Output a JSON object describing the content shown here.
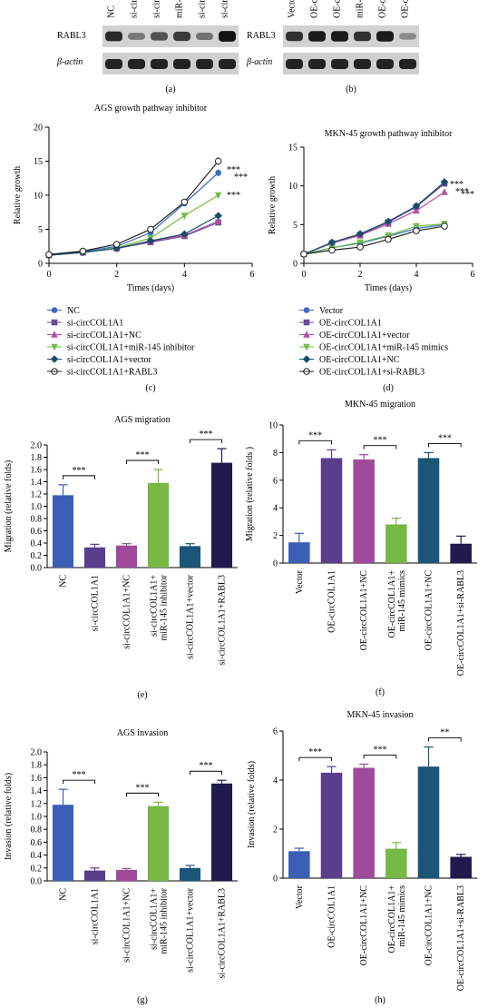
{
  "blots": {
    "a": {
      "lanes": [
        "NC",
        "si-cir",
        "si-cir",
        "miR-",
        "si-cir",
        "si-cir"
      ],
      "row1": "RABL3",
      "row2": "β-actin",
      "intensity": [
        0.8,
        0.3,
        0.55,
        0.7,
        0.35,
        0.95
      ],
      "panel": "(a)"
    },
    "b": {
      "lanes": [
        "Vector",
        "OE-c",
        "OE-c",
        "miR-",
        "OE-c",
        "OE-c"
      ],
      "row1": "RABL3",
      "row2": "β-actin",
      "intensity": [
        0.75,
        0.9,
        0.9,
        0.75,
        0.9,
        0.2
      ],
      "panel": "(b)"
    }
  },
  "chart_data": [
    {
      "id": "c",
      "type": "line",
      "panel": "(c)",
      "title": "AGS growth pathway inhibitor",
      "xlabel": "Times (days)",
      "ylabel": "Relative growth",
      "xlim": [
        0,
        6
      ],
      "ylim": [
        0,
        20
      ],
      "xticks": [
        0,
        2,
        4,
        6
      ],
      "yticks": [
        0,
        5,
        10,
        15,
        20
      ],
      "x": [
        0,
        1,
        2,
        3,
        4,
        5
      ],
      "series": [
        {
          "name": "NC",
          "values": [
            1.3,
            1.7,
            2.5,
            4.5,
            8.8,
            13.3
          ],
          "color": "#3a6bc4",
          "marker": "circle-filled"
        },
        {
          "name": "si-circCOL1A1",
          "values": [
            1.2,
            1.6,
            2.2,
            3.1,
            4.0,
            6.0
          ],
          "color": "#6a4c9c",
          "marker": "square"
        },
        {
          "name": "si-circCOL1A1+NC",
          "values": [
            1.2,
            1.6,
            2.2,
            3.2,
            4.1,
            6.2
          ],
          "color": "#b04fa8",
          "marker": "triangle-up"
        },
        {
          "name": "si-circCOL1A1+miR-145 inhibitor",
          "values": [
            1.2,
            1.6,
            2.3,
            3.7,
            7.0,
            10.0
          ],
          "color": "#6fbe44",
          "marker": "triangle-down"
        },
        {
          "name": "si-circCOL1A1+vector",
          "values": [
            1.2,
            1.6,
            2.2,
            3.3,
            4.3,
            7.0
          ],
          "color": "#1b4d6b",
          "marker": "diamond"
        },
        {
          "name": "si-circCOL1A1+RABL3",
          "values": [
            1.3,
            1.8,
            2.8,
            5.0,
            9.0,
            15.0
          ],
          "color": "#222222",
          "marker": "circle-open"
        }
      ],
      "annotations": [
        "***",
        "***",
        "***"
      ]
    },
    {
      "id": "d",
      "type": "line",
      "panel": "(d)",
      "title": "MKN-45 growth pathway inhibitor",
      "xlabel": "Times (days)",
      "ylabel": "Relative growth",
      "xlim": [
        0,
        6
      ],
      "ylim": [
        0,
        15
      ],
      "xticks": [
        0,
        2,
        4,
        6
      ],
      "yticks": [
        0,
        5,
        10,
        15
      ],
      "x": [
        0,
        1,
        2,
        3,
        4,
        5
      ],
      "series": [
        {
          "name": "Vector",
          "values": [
            1.2,
            2.0,
            2.6,
            3.5,
            4.5,
            5.0
          ],
          "color": "#3a6bc4",
          "marker": "circle-filled"
        },
        {
          "name": "OE-circCOL1A1",
          "values": [
            1.2,
            2.6,
            3.7,
            5.3,
            7.3,
            10.3
          ],
          "color": "#6a4c9c",
          "marker": "square"
        },
        {
          "name": "OE-circCOL1A1+vector",
          "values": [
            1.2,
            2.6,
            3.6,
            5.1,
            6.8,
            9.2
          ],
          "color": "#b04fa8",
          "marker": "triangle-up"
        },
        {
          "name": "OE-circCOL1A1+miR-145 mimics",
          "values": [
            1.2,
            2.0,
            2.7,
            3.6,
            4.8,
            5.1
          ],
          "color": "#6fbe44",
          "marker": "triangle-down"
        },
        {
          "name": "OE-circCOL1A1+NC",
          "values": [
            1.2,
            2.7,
            3.8,
            5.4,
            7.4,
            10.5
          ],
          "color": "#1b4d6b",
          "marker": "diamond"
        },
        {
          "name": "OE-circCOL1A1+si-RABL3",
          "values": [
            1.2,
            1.7,
            2.1,
            3.1,
            4.2,
            4.8
          ],
          "color": "#222222",
          "marker": "circle-open"
        }
      ],
      "annotations": [
        "***",
        "***",
        "***"
      ]
    },
    {
      "id": "e",
      "type": "bar",
      "panel": "(e)",
      "title": "AGS migration",
      "ylabel": "Migration (relative folds)",
      "ylim": [
        0,
        2.0
      ],
      "yticks": [
        "0.0",
        "0.2",
        "0.4",
        "0.6",
        "0.8",
        "1.0",
        "1.2",
        "1.4",
        "1.6",
        "1.8",
        "2.0"
      ],
      "categories": [
        "NC",
        "si-circCOL1A1",
        "si-circCOL1A1+NC",
        "si-circCOL1A1+ miR-145 inhibitor",
        "si-circCOL1A1+vector",
        "si-circCOL1A1+RABL3"
      ],
      "values": [
        1.18,
        0.33,
        0.36,
        1.38,
        0.35,
        1.71
      ],
      "errors": [
        0.17,
        0.05,
        0.03,
        0.22,
        0.04,
        0.23
      ],
      "colors": [
        "#3a5fb5",
        "#5a3e8c",
        "#a04a9c",
        "#76b843",
        "#1b5577",
        "#201a4f"
      ],
      "significance": [
        {
          "from": 0,
          "to": 1,
          "label": "***"
        },
        {
          "from": 2,
          "to": 3,
          "label": "***"
        },
        {
          "from": 4,
          "to": 5,
          "label": "***"
        }
      ]
    },
    {
      "id": "f",
      "type": "bar",
      "panel": "(f)",
      "title": "MKN-45 migration",
      "ylabel": "Migration (relative folds )",
      "ylim": [
        0,
        10
      ],
      "yticks": [
        "0",
        "2",
        "4",
        "6",
        "8",
        "10"
      ],
      "categories": [
        "Vector",
        "OE-circCOL1A1",
        "OE-circCOL1A1+NC",
        "OE-circCOL1A1+ miR-145 mimics",
        "OE-circCOL1A1+NC",
        "OE-circCOL1A1+si-RABL3"
      ],
      "values": [
        1.5,
        7.6,
        7.5,
        2.8,
        7.6,
        1.4
      ],
      "errors": [
        0.65,
        0.6,
        0.35,
        0.45,
        0.4,
        0.55
      ],
      "colors": [
        "#3a5fb5",
        "#5a3e8c",
        "#a04a9c",
        "#76b843",
        "#1b5577",
        "#201a4f"
      ],
      "significance": [
        {
          "from": 0,
          "to": 1,
          "label": "***"
        },
        {
          "from": 2,
          "to": 3,
          "label": "***"
        },
        {
          "from": 4,
          "to": 5,
          "label": "***"
        }
      ]
    },
    {
      "id": "g",
      "type": "bar",
      "panel": "(g)",
      "title": "AGS invasion",
      "ylabel": "Invasion (relative folds)",
      "ylim": [
        0,
        2.0
      ],
      "yticks": [
        "0.0",
        "0.2",
        "0.4",
        "0.6",
        "0.8",
        "1.0",
        "1.2",
        "1.4",
        "1.6",
        "1.8",
        "2.0"
      ],
      "categories": [
        "NC",
        "si-circCOL1A1",
        "si-circCOL1A1+NC",
        "si-circCOL1A1+ miR-145 inhibitor",
        "si-circCOL1A1+vector",
        "si-circCOL1A1+RABL3"
      ],
      "values": [
        1.18,
        0.16,
        0.17,
        1.16,
        0.2,
        1.51
      ],
      "errors": [
        0.24,
        0.04,
        0.02,
        0.06,
        0.04,
        0.05
      ],
      "colors": [
        "#3a5fb5",
        "#5a3e8c",
        "#a04a9c",
        "#76b843",
        "#1b5577",
        "#201a4f"
      ],
      "significance": [
        {
          "from": 0,
          "to": 1,
          "label": "***"
        },
        {
          "from": 2,
          "to": 3,
          "label": "***"
        },
        {
          "from": 4,
          "to": 5,
          "label": "***"
        }
      ]
    },
    {
      "id": "h",
      "type": "bar",
      "panel": "(h)",
      "title": "MKN-45 invasion",
      "ylabel": "Invasion (relative folds)",
      "ylim": [
        0,
        6
      ],
      "yticks": [
        "0",
        "2",
        "4",
        "6"
      ],
      "categories": [
        "Vector",
        "OE-circCOL1A1",
        "OE-circCOL1A1+NC",
        "OE-circCOL1A1+ miR-145 mimics",
        "OE-circCOL1A1+NC",
        "OE-circCOL1A1+si-RABL3"
      ],
      "values": [
        1.1,
        4.3,
        4.5,
        1.2,
        4.55,
        0.87
      ],
      "errors": [
        0.12,
        0.25,
        0.15,
        0.25,
        0.8,
        0.1
      ],
      "colors": [
        "#3a5fb5",
        "#5a3e8c",
        "#a04a9c",
        "#76b843",
        "#1b5577",
        "#201a4f"
      ],
      "significance": [
        {
          "from": 0,
          "to": 1,
          "label": "***"
        },
        {
          "from": 2,
          "to": 3,
          "label": "***"
        },
        {
          "from": 4,
          "to": 5,
          "label": "**"
        }
      ]
    }
  ]
}
